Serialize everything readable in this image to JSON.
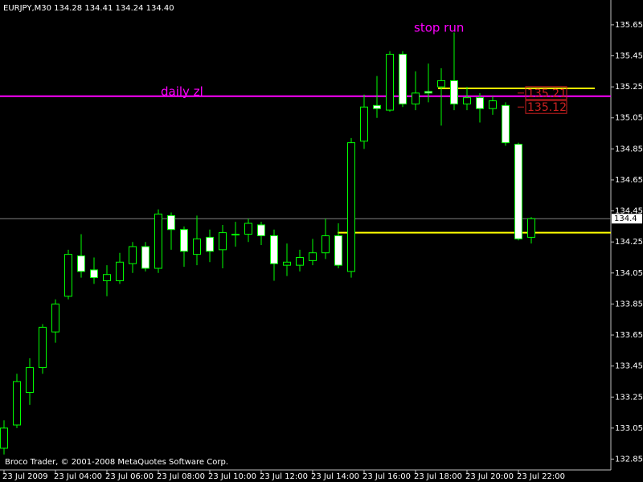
{
  "chart_data": {
    "type": "candlestick",
    "header": "EURJPY,M30  134.28 134.41 134.24 134.40",
    "footer": "Broco Trader, © 2001-2008 MetaQuotes Software Corp.",
    "categories": [
      "23 Jul 2009",
      null,
      null,
      null,
      "23 Jul 04:00",
      null,
      null,
      null,
      "23 Jul 06:00",
      null,
      null,
      null,
      "23 Jul 08:00",
      null,
      null,
      null,
      "23 Jul 10:00",
      null,
      null,
      null,
      "23 Jul 12:00",
      null,
      null,
      null,
      "23 Jul 14:00",
      null,
      null,
      null,
      "23 Jul 16:00",
      null,
      null,
      null,
      "23 Jul 18:00",
      null,
      null,
      null,
      "23 Jul 20:00",
      null,
      null,
      null,
      "23 Jul 22:00",
      null
    ],
    "open": [
      132.92,
      133.07,
      133.28,
      133.44,
      133.67,
      133.9,
      134.16,
      134.07,
      134.0,
      134.0,
      134.11,
      134.22,
      134.08,
      134.42,
      134.33,
      134.17,
      134.28,
      134.2,
      134.3,
      134.3,
      134.36,
      134.29,
      134.1,
      134.1,
      134.13,
      134.18,
      134.29,
      134.06,
      134.9,
      135.13,
      135.1,
      135.46,
      135.14,
      135.22,
      135.25,
      135.29,
      135.14,
      135.18,
      135.11,
      135.13,
      134.88,
      134.28
    ],
    "high": [
      133.1,
      133.4,
      133.5,
      133.72,
      133.88,
      134.2,
      134.3,
      134.15,
      134.1,
      134.18,
      134.25,
      134.25,
      134.46,
      134.44,
      134.35,
      134.42,
      134.33,
      134.36,
      134.38,
      134.4,
      134.38,
      134.33,
      134.24,
      134.2,
      134.27,
      134.4,
      134.37,
      134.92,
      135.2,
      135.32,
      135.48,
      135.48,
      135.35,
      135.4,
      135.37,
      135.6,
      135.25,
      135.21,
      135.19,
      135.15,
      134.89,
      134.41
    ],
    "low": [
      132.88,
      133.05,
      133.2,
      133.4,
      133.6,
      133.88,
      134.02,
      133.98,
      133.9,
      133.98,
      134.05,
      134.06,
      134.05,
      134.2,
      134.09,
      134.1,
      134.12,
      134.08,
      134.22,
      134.25,
      134.23,
      134.0,
      134.03,
      134.06,
      134.1,
      134.14,
      134.08,
      134.02,
      134.85,
      135.05,
      135.09,
      135.12,
      135.1,
      135.15,
      135.0,
      135.1,
      135.1,
      135.02,
      135.07,
      134.87,
      134.26,
      134.24
    ],
    "close": [
      133.05,
      133.35,
      133.44,
      133.7,
      133.85,
      134.17,
      134.06,
      134.02,
      134.04,
      134.12,
      134.22,
      134.08,
      134.43,
      134.33,
      134.19,
      134.27,
      134.19,
      134.31,
      134.3,
      134.37,
      134.29,
      134.11,
      134.12,
      134.15,
      134.18,
      134.29,
      134.1,
      134.89,
      135.12,
      135.11,
      135.46,
      135.14,
      135.21,
      135.21,
      135.29,
      135.14,
      135.18,
      135.11,
      135.16,
      134.89,
      134.27,
      134.4
    ],
    "bull_color": "#000000",
    "bear_color": "#ffffff",
    "outline_color": "#00ff00",
    "ylim": [
      132.78,
      135.81
    ],
    "yticks": [
      135.65,
      135.45,
      135.25,
      135.05,
      134.85,
      134.65,
      134.45,
      134.25,
      134.05,
      133.85,
      133.65,
      133.45,
      133.25,
      133.05,
      132.85
    ],
    "hlines": [
      {
        "value": 135.19,
        "color": "#ff00ff",
        "label": "daily zl"
      },
      {
        "value": 134.31,
        "color": "#ffff00"
      },
      {
        "value": 135.24,
        "color": "#ffff00"
      }
    ],
    "annotation": {
      "text": "stop run",
      "color": "#ff00ff"
    },
    "price_labels": [
      135.21,
      135.12
    ],
    "price_label_color": "#cc2020",
    "current_price": 134.4
  }
}
